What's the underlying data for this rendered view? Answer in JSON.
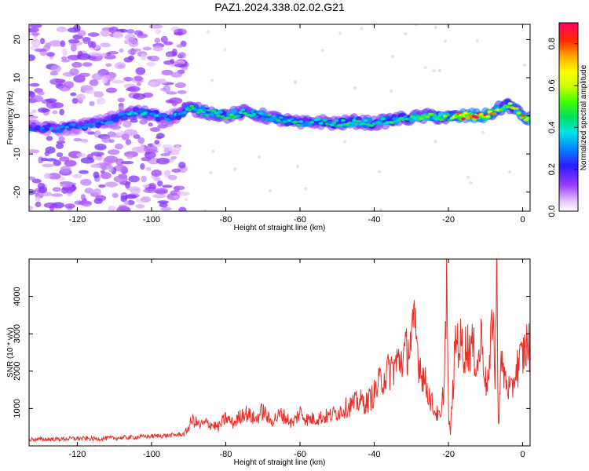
{
  "title": "PAZ1.2024.338.02.02.G21",
  "chart_data": [
    {
      "type": "heatmap",
      "title": "",
      "xlabel": "Height of straight line (km)",
      "ylabel": "Frequency (Hz)",
      "xlim": [
        -133,
        2
      ],
      "ylim": [
        -25,
        24
      ],
      "xticks": [
        -120,
        -100,
        -80,
        -60,
        -40,
        -20,
        0
      ],
      "yticks": [
        -20,
        -10,
        0,
        10,
        20
      ],
      "colorbar": {
        "label": "Normalized spectral amplitude",
        "range": [
          0.0,
          0.9
        ],
        "ticks": [
          0.0,
          0.2,
          0.4,
          0.6,
          0.8
        ]
      },
      "ridge": {
        "x": [
          -133,
          -125,
          -118,
          -110,
          -105,
          -100,
          -95,
          -90,
          -85,
          -80,
          -75,
          -70,
          -65,
          -60,
          -55,
          -50,
          -45,
          -40,
          -35,
          -30,
          -25,
          -20,
          -15,
          -10,
          -6,
          -4,
          0,
          2
        ],
        "frequency": [
          -3,
          -3.5,
          -2.5,
          -1,
          1,
          0.5,
          -1,
          2,
          1,
          0,
          1,
          0,
          -1,
          -2,
          -1.5,
          -2,
          -1.5,
          -2,
          -1,
          -0.5,
          0,
          -0.5,
          0,
          0,
          2,
          3,
          0,
          -1
        ],
        "amplitude": [
          0.25,
          0.3,
          0.28,
          0.32,
          0.4,
          0.35,
          0.3,
          0.45,
          0.42,
          0.45,
          0.45,
          0.42,
          0.4,
          0.4,
          0.38,
          0.42,
          0.45,
          0.42,
          0.45,
          0.45,
          0.5,
          0.55,
          0.85,
          0.8,
          0.6,
          0.55,
          0.75,
          0.6
        ]
      },
      "noise_region_x": [
        -133,
        -91
      ]
    },
    {
      "type": "line",
      "title": "",
      "xlabel": "Height of straight line (km)",
      "ylabel": "SNR (10 * v/v)",
      "xlim": [
        -133,
        2
      ],
      "ylim": [
        0,
        5000
      ],
      "xticks": [
        -120,
        -100,
        -80,
        -60,
        -40,
        -20,
        0
      ],
      "yticks": [
        1000,
        2000,
        3000,
        4000
      ],
      "series": [
        {
          "color": "#e8302a",
          "x": [
            -133,
            -125,
            -120,
            -115,
            -110,
            -105,
            -100,
            -95,
            -91,
            -89,
            -87,
            -85,
            -82,
            -80,
            -78,
            -75,
            -72,
            -70,
            -68,
            -65,
            -62,
            -60,
            -58,
            -55,
            -52,
            -50,
            -48,
            -46,
            -44,
            -42,
            -40,
            -38,
            -36,
            -34,
            -32,
            -30,
            -29,
            -28,
            -26,
            -24,
            -22,
            -21,
            -20.5,
            -20,
            -19.5,
            -18,
            -16,
            -14,
            -12,
            -11,
            -10,
            -9,
            -8,
            -7.5,
            -7,
            -6.5,
            -6,
            -5,
            -4,
            -3,
            -2,
            -1,
            0,
            1,
            2
          ],
          "y": [
            170,
            180,
            200,
            190,
            210,
            230,
            260,
            280,
            320,
            700,
            550,
            620,
            500,
            750,
            600,
            900,
            700,
            950,
            650,
            850,
            600,
            900,
            700,
            750,
            800,
            900,
            1000,
            1100,
            1200,
            1150,
            1400,
            1800,
            2000,
            2200,
            2400,
            2800,
            3200,
            2300,
            1600,
            1000,
            700,
            2000,
            4700,
            800,
            300,
            2900,
            2600,
            2700,
            2200,
            3000,
            1700,
            1800,
            4000,
            1500,
            4700,
            300,
            2200,
            1900,
            1600,
            1400,
            2000,
            2200,
            2400,
            2700,
            2600
          ]
        }
      ]
    }
  ]
}
